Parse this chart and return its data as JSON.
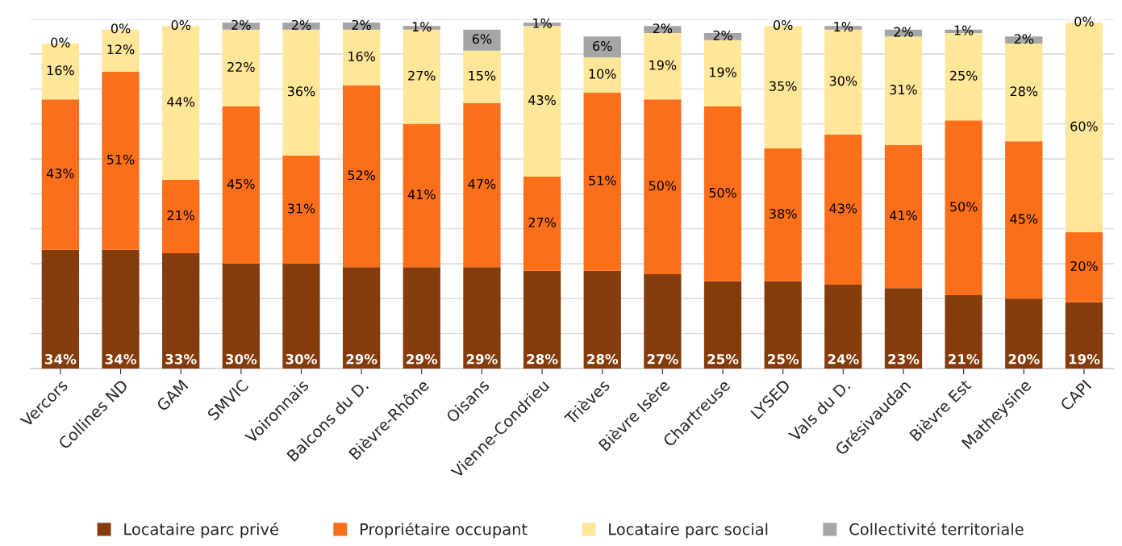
{
  "chart_data": {
    "type": "bar",
    "stacked": true,
    "categories": [
      "Vercors",
      "Collines ND",
      "GAM",
      "SMVIC",
      "Voironnais",
      "Balcons du D.",
      "Bièvre-Rhône",
      "Oisans",
      "Vienne-Condrieu",
      "Trièves",
      "Bièvre Isère",
      "Chartreuse",
      "LYSED",
      "Vals du D.",
      "Grésivaudan",
      "Bièvre Est",
      "Matheysine",
      "CAPI"
    ],
    "series": [
      {
        "name": "Locataire parc privé",
        "color": "#843c0c",
        "values": [
          34,
          34,
          33,
          30,
          30,
          29,
          29,
          29,
          28,
          28,
          27,
          25,
          25,
          24,
          23,
          21,
          20,
          19
        ],
        "value_labels": [
          "34%",
          "34%",
          "33%",
          "30%",
          "30%",
          "29%",
          "29%",
          "29%",
          "28%",
          "28%",
          "27%",
          "25%",
          "25%",
          "24%",
          "23%",
          "21%",
          "20%",
          "19%"
        ]
      },
      {
        "name": "Propriétaire occupant",
        "color": "#fb6f1a",
        "values": [
          43,
          51,
          21,
          45,
          31,
          52,
          41,
          47,
          27,
          51,
          50,
          50,
          38,
          43,
          41,
          50,
          45,
          20
        ],
        "value_labels": [
          "43%",
          "51%",
          "21%",
          "45%",
          "31%",
          "52%",
          "41%",
          "47%",
          "27%",
          "51%",
          "50%",
          "50%",
          "38%",
          "43%",
          "41%",
          "50%",
          "45%",
          "20%"
        ]
      },
      {
        "name": "Locataire parc social",
        "color": "#ffe699",
        "values": [
          16,
          12,
          44,
          22,
          36,
          16,
          27,
          15,
          43,
          10,
          19,
          19,
          35,
          30,
          31,
          25,
          28,
          60
        ],
        "value_labels": [
          "16%",
          "12%",
          "44%",
          "22%",
          "36%",
          "16%",
          "27%",
          "15%",
          "43%",
          "10%",
          "19%",
          "19%",
          "35%",
          "30%",
          "31%",
          "25%",
          "28%",
          "60%"
        ]
      },
      {
        "name": "Collectivité territoriale",
        "color": "#a5a5a5",
        "values": [
          0,
          0,
          0,
          2,
          2,
          2,
          1,
          6,
          1,
          6,
          2,
          2,
          0,
          1,
          2,
          1,
          2,
          0
        ],
        "value_labels": [
          "0%",
          "0%",
          "0%",
          "2%",
          "2%",
          "2%",
          "1%",
          "6%",
          "1%",
          "6%",
          "2%",
          "2%",
          "0%",
          "1%",
          "2%",
          "1%",
          "2%",
          "0%"
        ]
      }
    ],
    "ylim": [
      0,
      100
    ],
    "yticks": [
      {
        "value": 0,
        "label": null
      },
      {
        "value": 10,
        "label": null
      },
      {
        "value": 20,
        "label": null
      },
      {
        "value": 30,
        "label": null
      },
      {
        "value": 40,
        "label": null
      },
      {
        "value": 50,
        "label": null
      },
      {
        "value": 60,
        "label": null
      },
      {
        "value": 70,
        "label": null
      },
      {
        "value": 80,
        "label": null
      },
      {
        "value": 90,
        "label": null
      },
      {
        "value": 100,
        "label": null
      }
    ],
    "tick_labels": "x",
    "grid": "y",
    "legend": "bottom"
  }
}
